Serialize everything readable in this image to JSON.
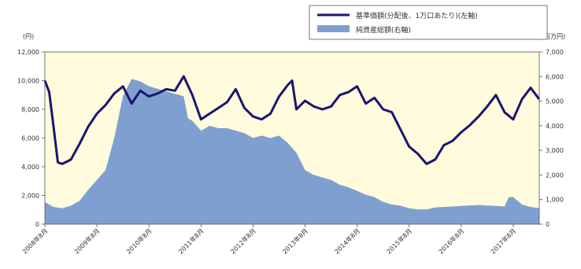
{
  "chart_data": {
    "type": "line",
    "title": "",
    "y_left_unit": "(円)",
    "y_right_unit": "(百万円)",
    "ylim_left": [
      0,
      12000
    ],
    "ylim_right": [
      0,
      7000
    ],
    "y_left_ticks": [
      "0",
      "2,000",
      "4,000",
      "6,000",
      "8,000",
      "10,000",
      "12,000"
    ],
    "y_right_ticks": [
      "0",
      "1,000",
      "2,000",
      "3,000",
      "4,000",
      "5,000",
      "6,000",
      "7,000"
    ],
    "x_tick_labels": [
      "2008年8月",
      "2009年8月",
      "2010年8月",
      "2011年8月",
      "2012年8月",
      "2013年8月",
      "2014年8月",
      "2015年8月",
      "2016年8月",
      "2017年8月"
    ],
    "grid": false,
    "legend_position": "top-right",
    "colors": {
      "plot_background": "#fffbdc",
      "nav_line": "#1a1570",
      "aum_area": "#7f9fd0"
    },
    "series": [
      {
        "name": "基準価額(分配後、1万口あたり)(左軸)",
        "type": "line",
        "axis": "left",
        "x": [
          "2008-08",
          "2008-09",
          "2008-10",
          "2008-11",
          "2008-12",
          "2009-02",
          "2009-04",
          "2009-06",
          "2009-08",
          "2009-10",
          "2009-12",
          "2010-02",
          "2010-04",
          "2010-06",
          "2010-08",
          "2010-10",
          "2010-12",
          "2011-02",
          "2011-04",
          "2011-06",
          "2011-08",
          "2011-10",
          "2011-12",
          "2012-02",
          "2012-04",
          "2012-06",
          "2012-08",
          "2012-10",
          "2012-12",
          "2013-02",
          "2013-04",
          "2013-05",
          "2013-06",
          "2013-08",
          "2013-10",
          "2013-12",
          "2014-02",
          "2014-04",
          "2014-06",
          "2014-08",
          "2014-10",
          "2014-12",
          "2015-02",
          "2015-04",
          "2015-06",
          "2015-08",
          "2015-10",
          "2015-12",
          "2016-02",
          "2016-04",
          "2016-06",
          "2016-08",
          "2016-10",
          "2016-12",
          "2017-02",
          "2017-04",
          "2017-06",
          "2017-08",
          "2017-10",
          "2017-12",
          "2018-02"
        ],
        "values": [
          10000,
          9200,
          6800,
          4300,
          4200,
          4500,
          5600,
          6800,
          7700,
          8300,
          9100,
          9600,
          8400,
          9300,
          8900,
          9100,
          9400,
          9300,
          10300,
          9000,
          7300,
          7700,
          8100,
          8500,
          9400,
          8100,
          7500,
          7300,
          7700,
          8900,
          9700,
          10000,
          8000,
          8600,
          8200,
          8000,
          8200,
          9000,
          9200,
          9600,
          8400,
          8800,
          8000,
          7800,
          6600,
          5400,
          4900,
          4200,
          4500,
          5500,
          5800,
          6400,
          6900,
          7500,
          8200,
          9000,
          7800,
          7300,
          8700,
          9500,
          8700
        ]
      },
      {
        "name": "純資産総額(右軸)",
        "type": "area",
        "axis": "right",
        "x": [
          "2008-08",
          "2008-10",
          "2008-12",
          "2009-02",
          "2009-04",
          "2009-06",
          "2009-08",
          "2009-10",
          "2009-12",
          "2010-02",
          "2010-04",
          "2010-06",
          "2010-08",
          "2010-10",
          "2010-12",
          "2011-02",
          "2011-04",
          "2011-05",
          "2011-06",
          "2011-08",
          "2011-10",
          "2011-12",
          "2012-02",
          "2012-04",
          "2012-06",
          "2012-08",
          "2012-10",
          "2012-12",
          "2013-02",
          "2013-04",
          "2013-05",
          "2013-06",
          "2013-08",
          "2013-10",
          "2013-12",
          "2014-02",
          "2014-04",
          "2014-06",
          "2014-08",
          "2014-10",
          "2014-12",
          "2015-02",
          "2015-04",
          "2015-06",
          "2015-08",
          "2015-10",
          "2015-12",
          "2016-02",
          "2016-04",
          "2016-06",
          "2016-08",
          "2016-10",
          "2016-12",
          "2017-02",
          "2017-04",
          "2017-06",
          "2017-07",
          "2017-08",
          "2017-10",
          "2017-12",
          "2018-02"
        ],
        "values": [
          900,
          700,
          650,
          750,
          950,
          1400,
          1800,
          2200,
          3500,
          5200,
          5900,
          5800,
          5600,
          5500,
          5400,
          5300,
          5200,
          4300,
          4200,
          3800,
          4000,
          3900,
          3900,
          3800,
          3700,
          3500,
          3600,
          3500,
          3600,
          3300,
          3100,
          2900,
          2200,
          2000,
          1900,
          1800,
          1600,
          1500,
          1350,
          1200,
          1100,
          900,
          800,
          750,
          650,
          600,
          600,
          680,
          700,
          720,
          740,
          760,
          780,
          760,
          740,
          720,
          1100,
          1100,
          800,
          700,
          650
        ]
      }
    ]
  }
}
